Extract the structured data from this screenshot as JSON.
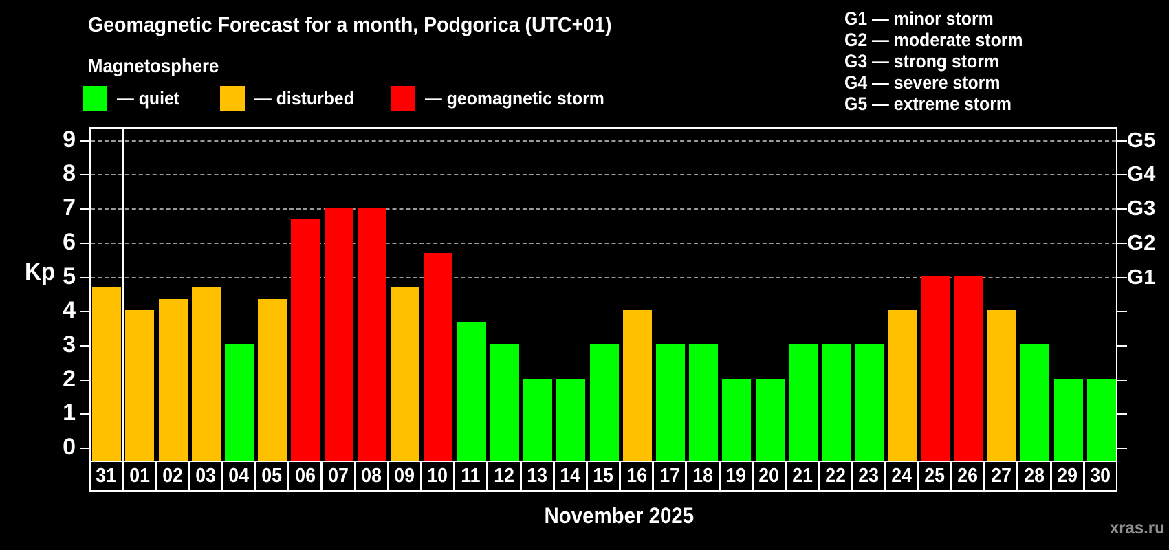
{
  "header": {
    "title": "Geomagnetic Forecast for a month, Podgorica (UTC+01)",
    "subtitle": "Magnetosphere"
  },
  "legend": {
    "quiet_label": "— quiet",
    "disturbed_label": "— disturbed",
    "storm_label": "— geomagnetic storm"
  },
  "g_legend": {
    "g1": "G1 — minor storm",
    "g2": "G2 — moderate storm",
    "g3": "G3 — strong storm",
    "g4": "G4 — severe storm",
    "g5": "G5 — extreme storm"
  },
  "axis": {
    "y_label": "Kp",
    "y_ticks": [
      0,
      1,
      2,
      3,
      4,
      5,
      6,
      7,
      8,
      9
    ],
    "g_labels": [
      {
        "kp": 5,
        "label": "G1"
      },
      {
        "kp": 6,
        "label": "G2"
      },
      {
        "kp": 7,
        "label": "G3"
      },
      {
        "kp": 8,
        "label": "G4"
      },
      {
        "kp": 9,
        "label": "G5"
      }
    ]
  },
  "colors": {
    "quiet": "#00ff00",
    "disturbed": "#ffc000",
    "storm": "#ff0000",
    "gridline": "#9a9a9a",
    "axis": "#ffffff",
    "background": "#000000",
    "watermark_text": "#8f8f8f"
  },
  "x_axis_title": "November 2025",
  "watermark": "xras.ru",
  "chart_data": {
    "type": "bar",
    "title": "Geomagnetic Forecast for a month, Podgorica (UTC+01)",
    "xlabel": "November 2025",
    "ylabel": "Kp",
    "ylim": [
      0,
      9
    ],
    "grid": "dashed horizontal lines at Kp 5,6,7,8,9 matching G1–G5",
    "gridlines_at": [
      5,
      6,
      7,
      8,
      9
    ],
    "legend_position": "top-left",
    "categories": [
      "31",
      "01",
      "02",
      "03",
      "04",
      "05",
      "06",
      "07",
      "08",
      "09",
      "10",
      "11",
      "12",
      "13",
      "14",
      "15",
      "16",
      "17",
      "18",
      "19",
      "20",
      "21",
      "22",
      "23",
      "24",
      "25",
      "26",
      "27",
      "28",
      "29",
      "30"
    ],
    "values": [
      4.67,
      4,
      4.33,
      4.67,
      3,
      4.33,
      6.67,
      7,
      7,
      4.67,
      5.67,
      3.67,
      3,
      2,
      2,
      3,
      4,
      3,
      3,
      2,
      2,
      3,
      3,
      3,
      4,
      5,
      5,
      4,
      3,
      2,
      2
    ],
    "statuses": [
      "disturbed",
      "disturbed",
      "disturbed",
      "disturbed",
      "quiet",
      "disturbed",
      "storm",
      "storm",
      "storm",
      "disturbed",
      "storm",
      "quiet",
      "quiet",
      "quiet",
      "quiet",
      "quiet",
      "disturbed",
      "quiet",
      "quiet",
      "quiet",
      "quiet",
      "quiet",
      "quiet",
      "quiet",
      "disturbed",
      "storm",
      "storm",
      "disturbed",
      "quiet",
      "quiet",
      "quiet"
    ],
    "month_boundary_after_category": "31"
  }
}
